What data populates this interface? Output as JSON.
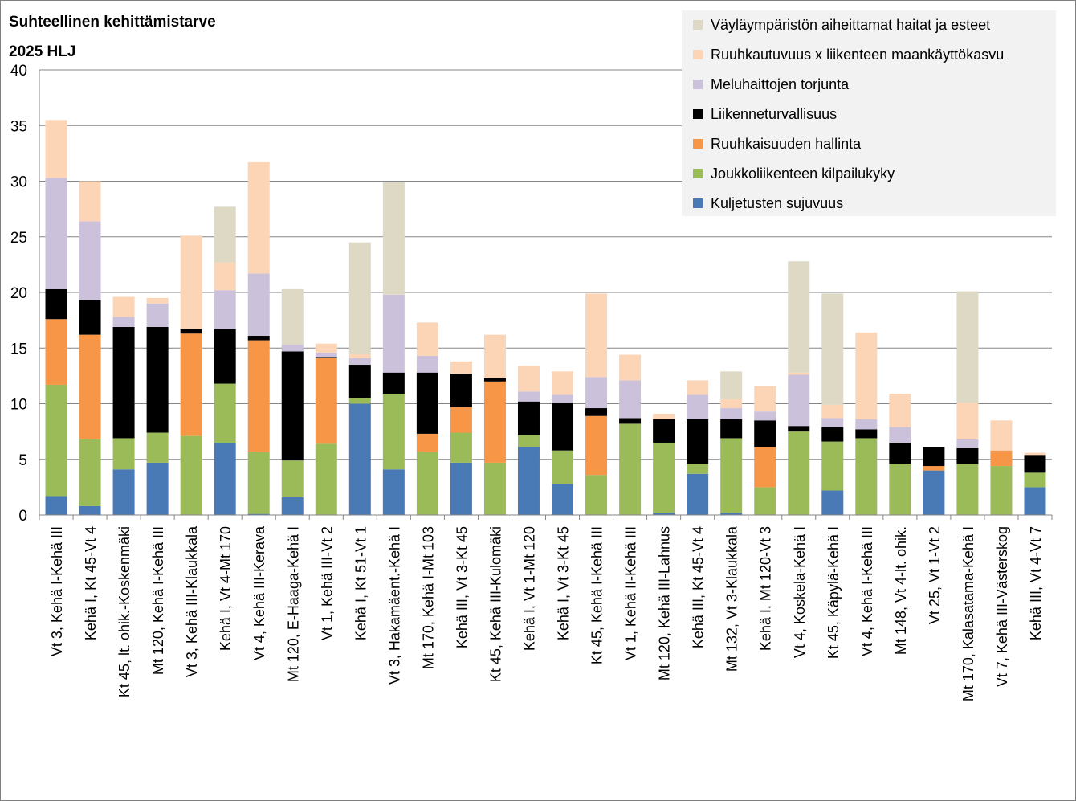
{
  "title_line1": "Suhteellinen kehittämistarve",
  "title_line2": "2025 HLJ",
  "chart_data": {
    "type": "bar",
    "stacked": true,
    "title": "Suhteellinen kehittämistarve 2025 HLJ",
    "ylim": [
      0,
      40
    ],
    "yticks": [
      0,
      5,
      10,
      15,
      20,
      25,
      30,
      35,
      40
    ],
    "grid": true,
    "legend_position": "top-right",
    "categories": [
      "Vt 3, Kehä I-Kehä III",
      "Kehä I, Kt 45-Vt 4",
      "Kt 45, lt. ohik.-Koskenmäki",
      "Mt 120, Kehä I-Kehä III",
      "Vt 3, Kehä III-Klaukkala",
      "Kehä I, Vt 4-Mt 170",
      "Vt 4, Kehä III-Kerava",
      "Mt 120, E-Haaga-Kehä I",
      "Vt 1, Kehä III-Vt 2",
      "Kehä I, Kt 51-Vt 1",
      "Vt 3, Hakamäent.-Kehä I",
      "Mt 170, Kehä I-Mt 103",
      "Kehä III, Vt 3-Kt 45",
      "Kt 45, Kehä III-Kulomäki",
      "Kehä I, Vt 1-Mt 120",
      "Kehä I, Vt 3-Kt 45",
      "Kt 45, Kehä I-Kehä III",
      "Vt 1, Kehä II-Kehä III",
      "Mt 120, Kehä III-Lahnus",
      "Kehä III, Kt 45-Vt 4",
      "Mt 132, Vt 3-Klaukkala",
      "Kehä I, Mt 120-Vt 3",
      "Vt 4, Koskela-Kehä I",
      "Kt 45, Käpylä-Kehä I",
      "Vt 4, Kehä I-Kehä III",
      "Mt 148, Vt 4-lt. ohik.",
      "Vt 25, Vt 1-Vt 2",
      "Mt 170, Kalasatama-Kehä I",
      "Vt 7, Kehä III-Västerskog",
      "Kehä III, Vt 4-Vt 7"
    ],
    "series": [
      {
        "name": "Kuljetusten sujuvuus",
        "color": "#4a7ab5",
        "values": [
          1.7,
          0.8,
          4.1,
          4.7,
          0,
          6.5,
          0.1,
          1.6,
          0,
          10.0,
          4.1,
          0,
          4.7,
          0,
          6.1,
          2.8,
          0,
          0,
          0.2,
          3.7,
          0.2,
          0,
          0,
          2.2,
          0,
          0,
          4.0,
          0,
          0,
          2.5
        ]
      },
      {
        "name": "Joukkoliikenteen kilpailukyky",
        "color": "#9bbb59",
        "values": [
          10.0,
          6.0,
          2.8,
          2.7,
          7.1,
          5.3,
          5.6,
          3.3,
          6.4,
          0.5,
          6.8,
          5.7,
          2.7,
          4.7,
          1.1,
          3.0,
          3.6,
          8.2,
          6.3,
          0.9,
          6.7,
          2.5,
          7.5,
          4.4,
          6.9,
          4.6,
          0,
          4.6,
          4.4,
          1.3
        ]
      },
      {
        "name": "Ruuhkaisuuden hallinta",
        "color": "#f79646",
        "values": [
          5.9,
          9.4,
          0,
          0,
          9.2,
          0,
          10.0,
          0,
          7.7,
          0,
          0,
          1.6,
          2.3,
          7.3,
          0,
          0,
          5.3,
          0,
          0,
          0,
          0,
          3.6,
          0,
          0,
          0,
          0,
          0.4,
          0,
          1.4,
          0
        ]
      },
      {
        "name": "Liikenneturvallisuus",
        "color": "#000000",
        "values": [
          2.7,
          3.1,
          10.0,
          9.5,
          0.4,
          4.9,
          0.4,
          9.8,
          0.1,
          3.0,
          1.9,
          5.5,
          3.0,
          0.3,
          3.0,
          4.3,
          0.7,
          0.5,
          2.1,
          4.0,
          1.7,
          2.4,
          0.5,
          1.3,
          0.8,
          1.9,
          1.7,
          1.4,
          0,
          1.6
        ]
      },
      {
        "name": "Meluhaittojen torjunta",
        "color": "#ccc1da",
        "values": [
          10.0,
          7.1,
          0.9,
          2.1,
          0,
          3.5,
          5.6,
          0.6,
          0.4,
          0.6,
          7.0,
          1.5,
          0,
          0,
          0.9,
          0.7,
          2.8,
          3.4,
          0,
          2.2,
          1.0,
          0.8,
          4.6,
          0.8,
          0.9,
          1.4,
          0,
          0.8,
          0,
          0
        ]
      },
      {
        "name": "Ruuhkautuvuus x liikenteen maankäyttökasvu",
        "color": "#fbd5b5",
        "values": [
          5.2,
          3.6,
          1.8,
          0.5,
          8.4,
          2.5,
          10.0,
          0,
          0.8,
          0.4,
          0,
          3.0,
          1.1,
          3.9,
          2.3,
          2.1,
          7.5,
          2.3,
          0.5,
          1.3,
          0.8,
          2.3,
          0.2,
          1.2,
          7.8,
          3.0,
          0,
          3.3,
          2.7,
          0.2
        ]
      },
      {
        "name": "Väyläympäristön aiheittamat haitat ja esteet",
        "color": "#ddd9c4",
        "values": [
          0,
          0,
          0,
          0,
          0,
          5.0,
          0,
          5.0,
          0,
          10.0,
          10.1,
          0,
          0,
          0,
          0,
          0,
          0,
          0,
          0,
          0,
          2.5,
          0,
          10.0,
          10.0,
          0,
          0,
          0,
          10.0,
          0,
          0
        ]
      }
    ]
  }
}
